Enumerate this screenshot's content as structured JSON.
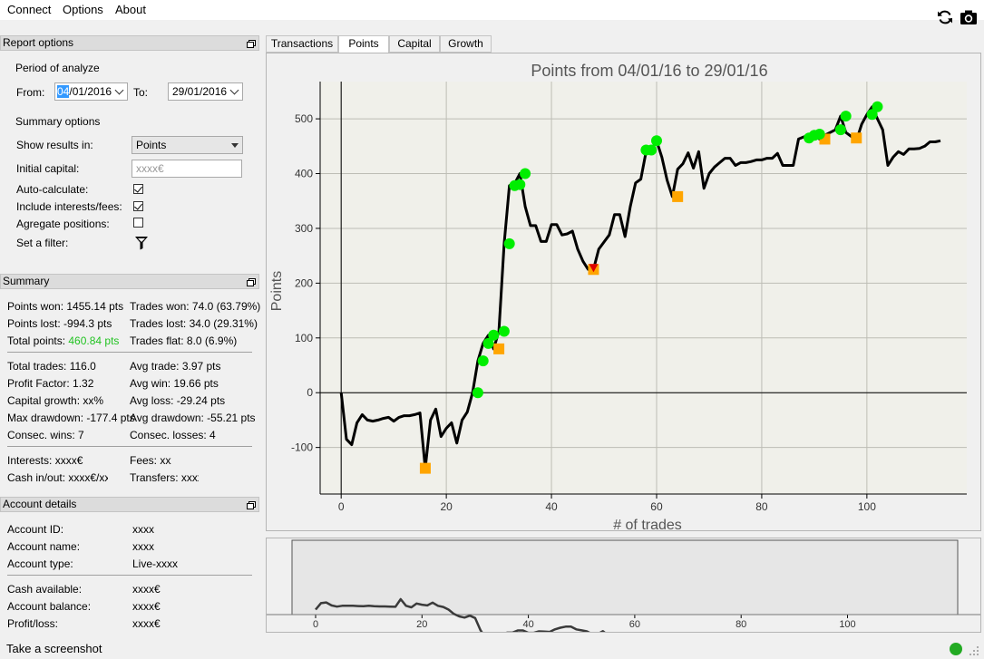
{
  "menu": {
    "items": [
      "Connect",
      "Options",
      "About"
    ]
  },
  "toolbar": {
    "refresh_icon": "refresh-icon",
    "screenshot_icon": "camera-icon"
  },
  "report_options": {
    "title": "Report options",
    "period_label": "Period of analyze",
    "from_label": "From:",
    "from_selected": "04",
    "from_rest": "/01/2016",
    "to_label": "To:",
    "to_value": "29/01/2016",
    "summary_options_label": "Summary options",
    "show_results_label": "Show results in:",
    "show_results_value": "Points",
    "initial_capital_label": "Initial capital:",
    "initial_capital_placeholder": "xxxx€",
    "auto_calc_label": "Auto-calculate:",
    "auto_calc_checked": true,
    "include_fees_label": "Include interests/fees:",
    "include_fees_checked": true,
    "aggregate_label": "Agregate positions:",
    "aggregate_checked": false,
    "filter_label": "Set a filter:"
  },
  "summary": {
    "title": "Summary",
    "points_won": "Points won: 1455.14 pts",
    "points_lost": "Points lost: -994.3 pts",
    "total_points_label": "Total points: ",
    "total_points_value": "460.84 pts",
    "trades_won": "Trades won: 74.0 (63.79%)",
    "trades_lost": "Trades lost: 34.0 (29.31%)",
    "trades_flat": "Trades flat: 8.0 (6.9%)",
    "total_trades": "Total trades: 116.0",
    "profit_factor": "Profit Factor: 1.32",
    "capital_growth": "Capital growth: xx%",
    "max_drawdown": "Max drawdown: -177.4 pts",
    "consec_wins": "Consec. wins: 7",
    "avg_trade": "Avg trade: 3.97 pts",
    "avg_win": "Avg win: 19.66 pts",
    "avg_loss": "Avg loss: -29.24 pts",
    "avg_drawdown": "Avg drawdown: -55.21 pts",
    "consec_losses": "Consec. losses: 4",
    "interests": "Interests: xxxx€",
    "cash_inout": "Cash in/out: xxxx€/xx",
    "fees": "Fees: xxx",
    "transfers": "Transfers: xxxx",
    "positive_color": "#22c322"
  },
  "account": {
    "title": "Account details",
    "id_label": "Account ID:",
    "id_value": "xxxx",
    "name_label": "Account name:",
    "name_value": "xxxx",
    "type_label": "Account type:",
    "type_value": "Live-xxxx",
    "cash_label": "Cash available:",
    "cash_value": "xxxx€",
    "balance_label": "Account balance:",
    "balance_value": "xxxx€",
    "pl_label": "Profit/loss:",
    "pl_value": "xxxx€"
  },
  "tabs": [
    "Transactions",
    "Points",
    "Capital",
    "Growth"
  ],
  "active_tab": "Points",
  "status": {
    "label": "Take a screenshot",
    "indicator_color": "#22aa22"
  },
  "chart_data": {
    "type": "line",
    "title": "Points from 04/01/16 to 29/01/16",
    "xlabel": "# of trades",
    "ylabel": "Points",
    "xlim": [
      -4,
      119
    ],
    "ylim": [
      -185,
      568
    ],
    "x_ticks": [
      0,
      20,
      40,
      60,
      80,
      100
    ],
    "y_ticks": [
      -100,
      0,
      100,
      200,
      300,
      400,
      500
    ],
    "grid": true,
    "line_color": "#000000",
    "y": [
      0,
      -85,
      -95,
      -55,
      -40,
      -50,
      -52,
      -50,
      -47,
      -45,
      -52,
      -45,
      -42,
      -42,
      -40,
      -37,
      -138,
      -50,
      -30,
      -80,
      -65,
      -55,
      -92,
      -50,
      -35,
      0,
      58,
      90,
      105,
      80,
      112,
      272,
      378,
      382,
      400,
      340,
      305,
      305,
      276,
      276,
      307,
      307,
      288,
      290,
      295,
      262,
      240,
      225,
      225,
      262,
      275,
      288,
      325,
      325,
      285,
      340,
      383,
      390,
      440,
      443,
      460,
      430,
      388,
      358,
      408,
      418,
      438,
      410,
      440,
      373,
      400,
      412,
      420,
      428,
      428,
      415,
      420,
      420,
      422,
      425,
      425,
      428,
      428,
      437,
      415,
      415,
      415,
      463,
      467,
      470,
      470,
      463,
      470,
      475,
      480,
      505,
      475,
      468,
      460,
      490,
      508,
      522,
      500,
      480,
      415,
      430,
      440,
      435,
      445,
      445,
      446,
      450,
      458,
      458,
      460
    ],
    "win_markers": [
      [
        26,
        0
      ],
      [
        27,
        58
      ],
      [
        28,
        90
      ],
      [
        29,
        105
      ],
      [
        31,
        112
      ],
      [
        32,
        272
      ],
      [
        33,
        378
      ],
      [
        34,
        380
      ],
      [
        35,
        400
      ],
      [
        58,
        443
      ],
      [
        59,
        443
      ],
      [
        60,
        460
      ],
      [
        89,
        465
      ],
      [
        90,
        470
      ],
      [
        91,
        472
      ],
      [
        95,
        480
      ],
      [
        96,
        505
      ],
      [
        101,
        508
      ],
      [
        102,
        522
      ]
    ],
    "loss_markers": [
      [
        16,
        -138
      ],
      [
        30,
        80
      ],
      [
        48,
        225
      ],
      [
        64,
        358
      ],
      [
        92,
        463
      ],
      [
        98,
        465
      ]
    ],
    "stop_markers": [
      [
        48,
        225
      ]
    ],
    "win_color": "#00ee00",
    "loss_color": "#ffa500",
    "stop_color": "#dd0000",
    "navigator": {
      "x_ticks": [
        0,
        20,
        40,
        60,
        80,
        100
      ]
    }
  }
}
